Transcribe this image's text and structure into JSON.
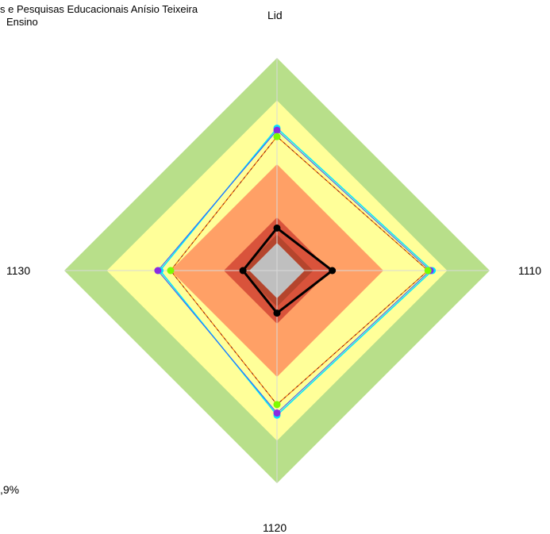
{
  "header": {
    "line1": "s e Pesquisas Educacionais Anísio Teixeira",
    "line2": "Ensino"
  },
  "footnote": ",9%",
  "colors": {
    "band_outer": "#b8df8a",
    "band_yellow": "#ffff99",
    "band_orange": "#ffa066",
    "band_red": "#d9533b",
    "band_dark": "#b5452d",
    "center": "#bfbfbf",
    "grid": "#d9d9d9"
  },
  "chart_data": {
    "type": "radar",
    "axes": [
      "Lid",
      "1110",
      "1120",
      "1130"
    ],
    "range": [
      0,
      100
    ],
    "bands": [
      {
        "from": 80,
        "to": 100,
        "color": "#b8df8a"
      },
      {
        "from": 50,
        "to": 80,
        "color": "#ffff99"
      },
      {
        "from": 25,
        "to": 50,
        "color": "#ffa066"
      },
      {
        "from": 17,
        "to": 25,
        "color": "#d9533b"
      },
      {
        "from": 13,
        "to": 17,
        "color": "#b5452d"
      },
      {
        "from": 0,
        "to": 13,
        "color": "#bfbfbf"
      }
    ],
    "series": [
      {
        "values": [
          67,
          73,
          68,
          55
        ],
        "color": "#00e5ff",
        "width": 1.5,
        "marker": true,
        "marker_color": "#00e5ff"
      },
      {
        "values": [
          66,
          72,
          67,
          56
        ],
        "color": "#3355ff",
        "width": 1,
        "marker": true,
        "marker_color": "#8a2be2"
      },
      {
        "values": [
          63,
          71,
          63,
          50
        ],
        "color": "#8b0000",
        "width": 1,
        "marker": true,
        "marker_color": "#7cfc00"
      },
      {
        "values": [
          63,
          71,
          63,
          50
        ],
        "color": "#ff8c00",
        "width": 1,
        "marker": false,
        "dash": "4,3"
      },
      {
        "values": [
          20,
          26,
          20,
          16
        ],
        "color": "#000000",
        "width": 3,
        "marker": true,
        "marker_color": "#000000"
      }
    ]
  }
}
